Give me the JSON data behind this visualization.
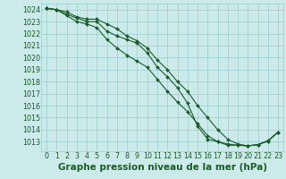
{
  "background_color": "#cceaea",
  "grid_color": "#99cccc",
  "line_color": "#1a5c2a",
  "xlabel": "Graphe pression niveau de la mer (hPa)",
  "xlabel_fontsize": 7.5,
  "tick_fontsize": 5.8,
  "xlim": [
    -0.5,
    23.5
  ],
  "ylim": [
    1012.2,
    1024.5
  ],
  "yticks": [
    1013,
    1014,
    1015,
    1016,
    1017,
    1018,
    1019,
    1020,
    1021,
    1022,
    1023,
    1024
  ],
  "xticks": [
    0,
    1,
    2,
    3,
    4,
    5,
    6,
    7,
    8,
    9,
    10,
    11,
    12,
    13,
    14,
    15,
    16,
    17,
    18,
    19,
    20,
    21,
    22,
    23
  ],
  "series": [
    [
      1024.1,
      1024.0,
      1023.6,
      1023.3,
      1023.0,
      1023.0,
      1022.2,
      1021.8,
      1021.5,
      1021.2,
      1020.4,
      1019.2,
      1018.4,
      1017.5,
      1016.2,
      1014.3,
      1013.2,
      1013.0,
      1012.8,
      1012.7,
      1012.65,
      1012.75,
      1013.05,
      1013.8
    ],
    [
      1024.1,
      1024.0,
      1023.8,
      1023.4,
      1023.2,
      1023.2,
      1022.8,
      1022.4,
      1021.8,
      1021.4,
      1020.8,
      1019.8,
      1019.0,
      1018.0,
      1017.2,
      1016.0,
      1015.0,
      1014.0,
      1013.2,
      1012.8,
      1012.65,
      1012.75,
      1013.1,
      1013.8
    ],
    [
      1024.1,
      1024.0,
      1023.5,
      1023.0,
      1022.8,
      1022.5,
      1021.5,
      1020.8,
      1020.2,
      1019.7,
      1019.2,
      1018.2,
      1017.2,
      1016.3,
      1015.5,
      1014.5,
      1013.5,
      1013.0,
      1012.7,
      1012.7,
      1012.65,
      1012.75,
      1013.05,
      1013.8
    ]
  ]
}
